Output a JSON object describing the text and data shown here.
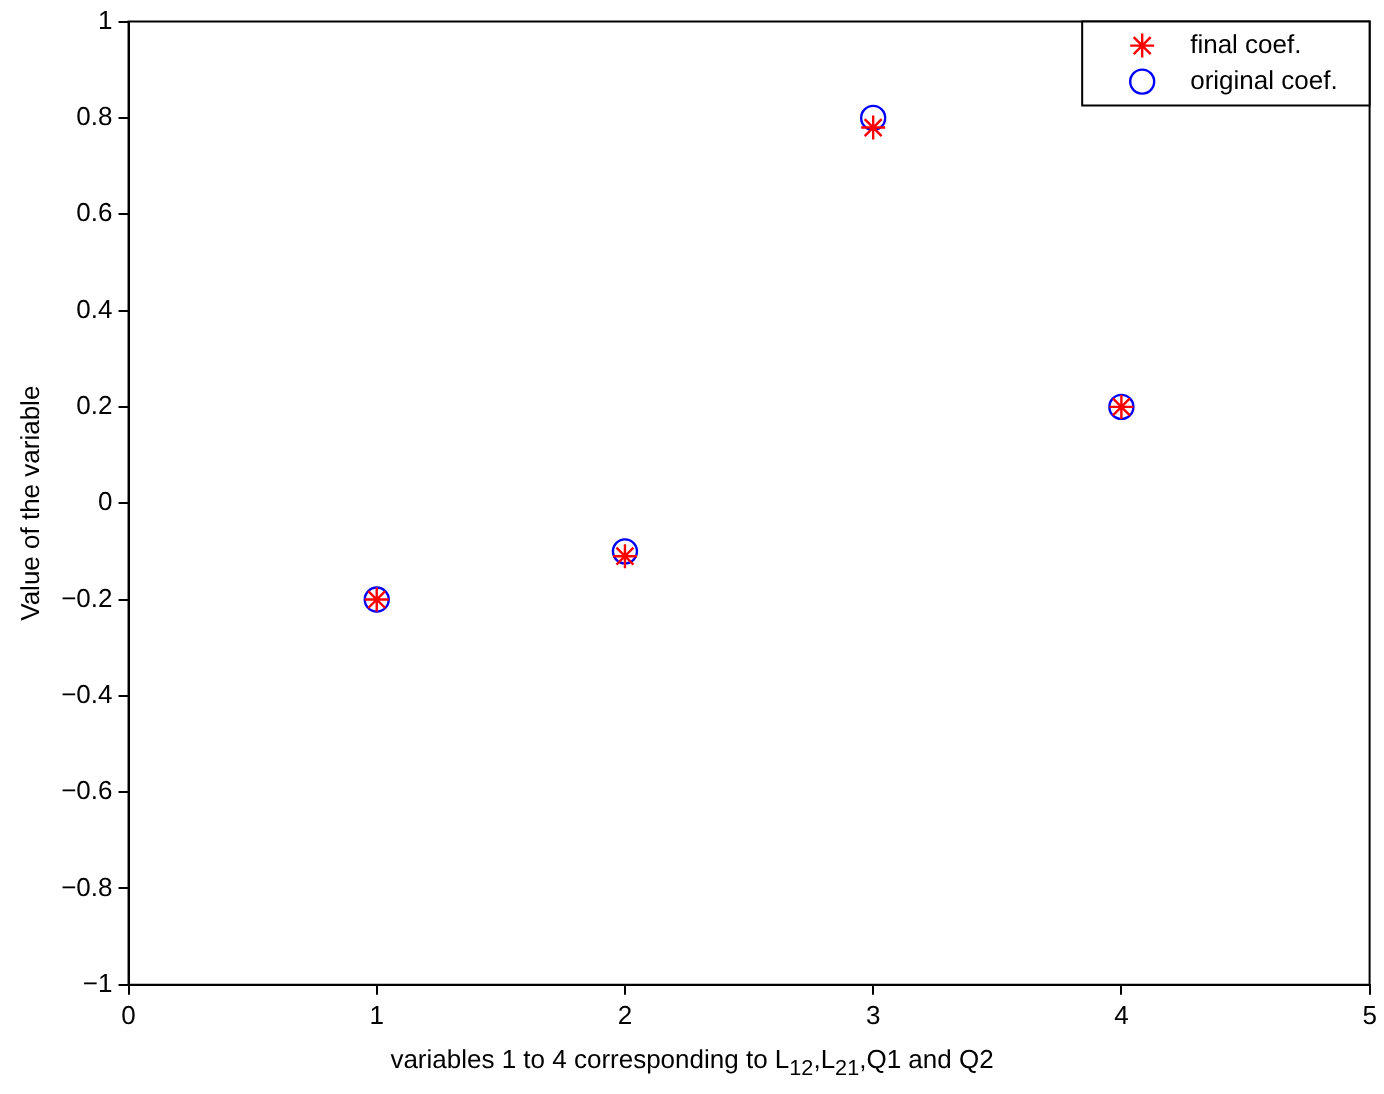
{
  "chart_data": {
    "type": "scatter",
    "xlabel": "variables 1 to 4 corresponding to L$_{12}$,L$_{21}$,Q1 and Q2",
    "ylabel": "Value of the variable",
    "x": [
      1,
      2,
      3,
      4
    ],
    "series": [
      {
        "name": "final coef.",
        "color": "#ff0000",
        "marker": "cross",
        "values": [
          -0.2,
          -0.11,
          0.78,
          0.2
        ]
      },
      {
        "name": "original coef.",
        "color": "#0000ff",
        "marker": "circle",
        "values": [
          -0.2,
          -0.1,
          0.8,
          0.2
        ]
      }
    ],
    "xlim": [
      0,
      5
    ],
    "xticks": [
      0,
      1,
      2,
      3,
      4,
      5
    ],
    "ylim": [
      -1,
      1
    ],
    "yticks": [
      {
        "value": -1,
        "label": "−1"
      },
      {
        "value": -0.8,
        "label": "−0.8"
      },
      {
        "value": -0.6,
        "label": "−0.6"
      },
      {
        "value": -0.4,
        "label": "−0.4"
      },
      {
        "value": -0.2,
        "label": "−0.2"
      },
      0,
      0.2,
      0.4,
      0.6,
      0.8,
      1
    ],
    "grid": false,
    "legend": "top right"
  }
}
